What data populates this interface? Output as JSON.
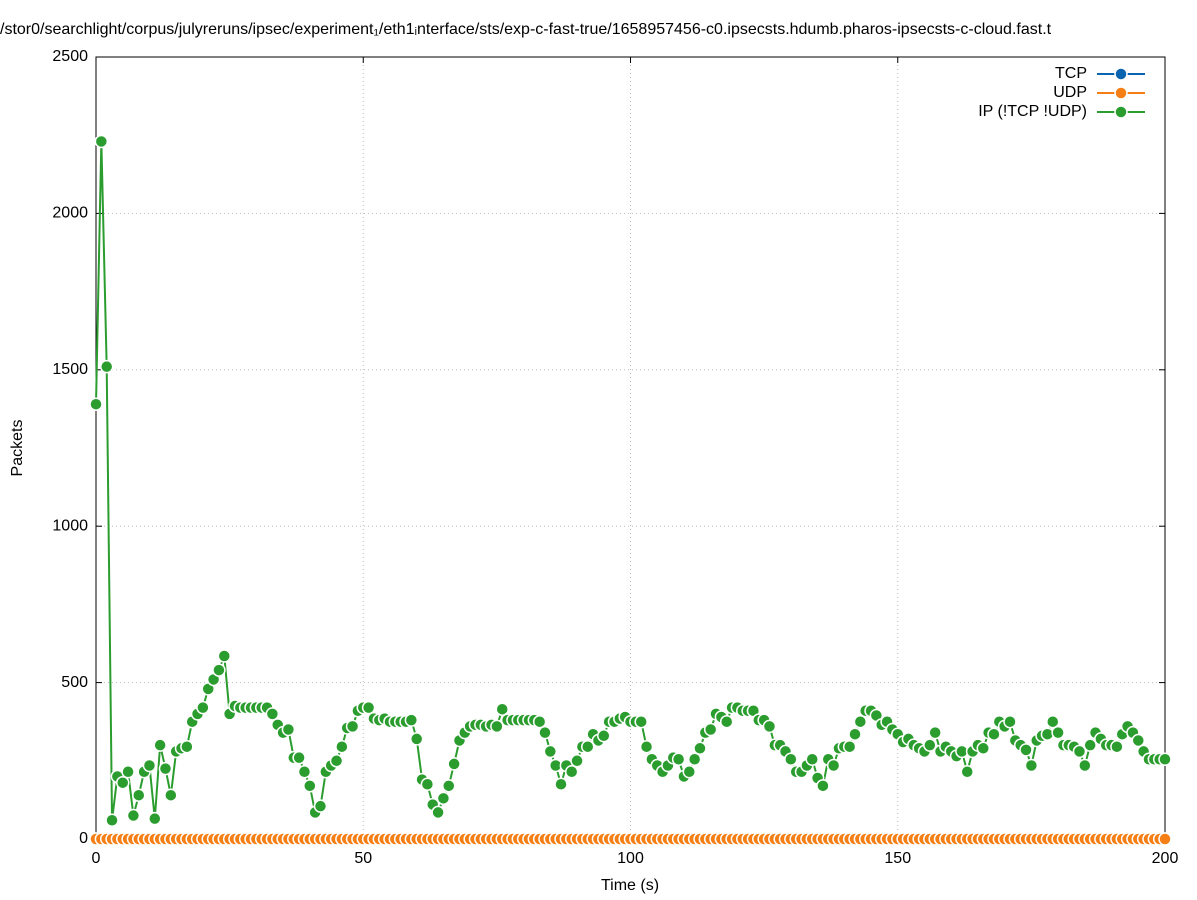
{
  "chart_data": {
    "type": "line",
    "title": "/stor0/searchlight/corpus/julyreruns/ipsec/experiment₁/eth1ᵢnterface/sts/exp-c-fast-true/1658957456-c0.ipsecsts.hdumb.pharos-ipsecsts-c-cloud.fast.t",
    "x_label": "Time (s)",
    "y_label": "Packets",
    "xlim": [
      0,
      200
    ],
    "xticks": [
      0,
      50,
      100,
      150,
      200
    ],
    "ylim": [
      0,
      2500
    ],
    "yticks": [
      0,
      500,
      1000,
      1500,
      2000,
      2500
    ],
    "grid": true,
    "legend": "upper right",
    "x": [
      0,
      1,
      2,
      3,
      4,
      5,
      6,
      7,
      8,
      9,
      10,
      11,
      12,
      13,
      14,
      15,
      16,
      17,
      18,
      19,
      20,
      21,
      22,
      23,
      24,
      25,
      26,
      27,
      28,
      29,
      30,
      31,
      32,
      33,
      34,
      35,
      36,
      37,
      38,
      39,
      40,
      41,
      42,
      43,
      44,
      45,
      46,
      47,
      48,
      49,
      50,
      51,
      52,
      53,
      54,
      55,
      56,
      57,
      58,
      59,
      60,
      61,
      62,
      63,
      64,
      65,
      66,
      67,
      68,
      69,
      70,
      71,
      72,
      73,
      74,
      75,
      76,
      77,
      78,
      79,
      80,
      81,
      82,
      83,
      84,
      85,
      86,
      87,
      88,
      89,
      90,
      91,
      92,
      93,
      94,
      95,
      96,
      97,
      98,
      99,
      100,
      101,
      102,
      103,
      104,
      105,
      106,
      107,
      108,
      109,
      110,
      111,
      112,
      113,
      114,
      115,
      116,
      117,
      118,
      119,
      120,
      121,
      122,
      123,
      124,
      125,
      126,
      127,
      128,
      129,
      130,
      131,
      132,
      133,
      134,
      135,
      136,
      137,
      138,
      139,
      140,
      141,
      142,
      143,
      144,
      145,
      146,
      147,
      148,
      149,
      150,
      151,
      152,
      153,
      154,
      155,
      156,
      157,
      158,
      159,
      160,
      161,
      162,
      163,
      164,
      165,
      166,
      167,
      168,
      169,
      170,
      171,
      172,
      173,
      174,
      175,
      176,
      177,
      178,
      179,
      180,
      181,
      182,
      183,
      184,
      185,
      186,
      187,
      188,
      189,
      190,
      191,
      192,
      193,
      194,
      195,
      196,
      197,
      198,
      199,
      200
    ],
    "series": [
      {
        "name": "TCP",
        "color": "#0b64b0",
        "values": [
          0,
          0,
          0,
          0,
          0,
          0,
          0,
          0,
          0,
          0,
          0,
          0,
          0,
          0,
          0,
          0,
          0,
          0,
          0,
          0,
          0,
          0,
          0,
          0,
          0,
          0,
          0,
          0,
          0,
          0,
          0,
          0,
          0,
          0,
          0,
          0,
          0,
          0,
          0,
          0,
          0,
          0,
          0,
          0,
          0,
          0,
          0,
          0,
          0,
          0,
          0,
          0,
          0,
          0,
          0,
          0,
          0,
          0,
          0,
          0,
          0,
          0,
          0,
          0,
          0,
          0,
          0,
          0,
          0,
          0,
          0,
          0,
          0,
          0,
          0,
          0,
          0,
          0,
          0,
          0,
          0,
          0,
          0,
          0,
          0,
          0,
          0,
          0,
          0,
          0,
          0,
          0,
          0,
          0,
          0,
          0,
          0,
          0,
          0,
          0,
          0,
          0,
          0,
          0,
          0,
          0,
          0,
          0,
          0,
          0,
          0,
          0,
          0,
          0,
          0,
          0,
          0,
          0,
          0,
          0,
          0,
          0,
          0,
          0,
          0,
          0,
          0,
          0,
          0,
          0,
          0,
          0,
          0,
          0,
          0,
          0,
          0,
          0,
          0,
          0,
          0,
          0,
          0,
          0,
          0,
          0,
          0,
          0,
          0,
          0,
          0,
          0,
          0,
          0,
          0,
          0,
          0,
          0,
          0,
          0,
          0,
          0,
          0,
          0,
          0,
          0,
          0,
          0,
          0,
          0,
          0,
          0,
          0,
          0,
          0,
          0,
          0,
          0,
          0,
          0,
          0,
          0,
          0,
          0,
          0,
          0,
          0,
          0,
          0,
          0,
          0,
          0,
          0,
          0,
          0,
          0,
          0,
          0,
          0,
          0,
          0
        ]
      },
      {
        "name": "UDP",
        "color": "#f57f14",
        "values": [
          0,
          0,
          0,
          0,
          0,
          0,
          0,
          0,
          0,
          0,
          0,
          0,
          0,
          0,
          0,
          0,
          0,
          0,
          0,
          0,
          0,
          0,
          0,
          0,
          0,
          0,
          0,
          0,
          0,
          0,
          0,
          0,
          0,
          0,
          0,
          0,
          0,
          0,
          0,
          0,
          0,
          0,
          0,
          0,
          0,
          0,
          0,
          0,
          0,
          0,
          0,
          0,
          0,
          0,
          0,
          0,
          0,
          0,
          0,
          0,
          0,
          0,
          0,
          0,
          0,
          0,
          0,
          0,
          0,
          0,
          0,
          0,
          0,
          0,
          0,
          0,
          0,
          0,
          0,
          0,
          0,
          0,
          0,
          0,
          0,
          0,
          0,
          0,
          0,
          0,
          0,
          0,
          0,
          0,
          0,
          0,
          0,
          0,
          0,
          0,
          0,
          0,
          0,
          0,
          0,
          0,
          0,
          0,
          0,
          0,
          0,
          0,
          0,
          0,
          0,
          0,
          0,
          0,
          0,
          0,
          0,
          0,
          0,
          0,
          0,
          0,
          0,
          0,
          0,
          0,
          0,
          0,
          0,
          0,
          0,
          0,
          0,
          0,
          0,
          0,
          0,
          0,
          0,
          0,
          0,
          0,
          0,
          0,
          0,
          0,
          0,
          0,
          0,
          0,
          0,
          0,
          0,
          0,
          0,
          0,
          0,
          0,
          0,
          0,
          0,
          0,
          0,
          0,
          0,
          0,
          0,
          0,
          0,
          0,
          0,
          0,
          0,
          0,
          0,
          0,
          0,
          0,
          0,
          0,
          0,
          0,
          0,
          0,
          0,
          0,
          0,
          0,
          0,
          0,
          0,
          0,
          0,
          0,
          0,
          0,
          0
        ]
      },
      {
        "name": "IP (!TCP  !UDP)",
        "color": "#2a9d2e",
        "values": [
          1390,
          2230,
          1510,
          60,
          200,
          180,
          215,
          75,
          140,
          215,
          235,
          65,
          300,
          225,
          140,
          280,
          290,
          295,
          375,
          400,
          420,
          480,
          510,
          540,
          585,
          400,
          425,
          420,
          420,
          420,
          420,
          420,
          420,
          400,
          365,
          340,
          350,
          260,
          260,
          215,
          170,
          85,
          105,
          215,
          235,
          250,
          295,
          355,
          360,
          410,
          420,
          420,
          385,
          380,
          385,
          375,
          375,
          375,
          375,
          380,
          320,
          190,
          175,
          110,
          85,
          130,
          170,
          240,
          315,
          340,
          360,
          365,
          365,
          360,
          365,
          360,
          415,
          380,
          380,
          380,
          380,
          380,
          380,
          375,
          340,
          280,
          235,
          175,
          235,
          215,
          250,
          295,
          295,
          335,
          315,
          330,
          375,
          375,
          385,
          390,
          375,
          375,
          375,
          295,
          255,
          235,
          215,
          235,
          260,
          255,
          200,
          215,
          255,
          290,
          340,
          350,
          400,
          390,
          375,
          420,
          420,
          410,
          410,
          410,
          380,
          380,
          360,
          300,
          300,
          280,
          255,
          215,
          215,
          235,
          255,
          195,
          170,
          255,
          235,
          290,
          295,
          295,
          335,
          375,
          410,
          410,
          395,
          365,
          375,
          350,
          335,
          310,
          320,
          300,
          290,
          280,
          300,
          340,
          280,
          295,
          280,
          265,
          280,
          215,
          280,
          300,
          290,
          340,
          335,
          375,
          360,
          375,
          315,
          300,
          285,
          235,
          315,
          330,
          335,
          375,
          340,
          300,
          300,
          295,
          280,
          235,
          300,
          340,
          320,
          300,
          300,
          295,
          335,
          360,
          340,
          315,
          280,
          255,
          255,
          255,
          255
        ]
      }
    ]
  }
}
